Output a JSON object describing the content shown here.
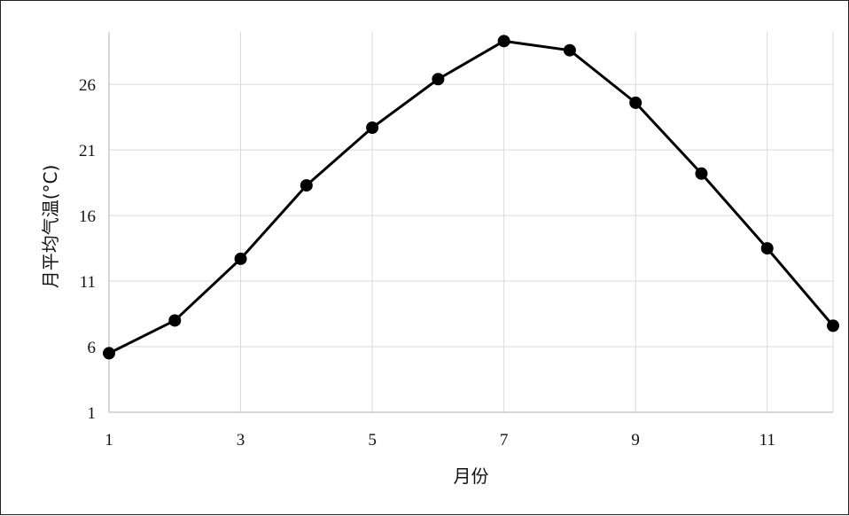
{
  "chart_data": {
    "type": "line",
    "title": "",
    "xlabel": "月份",
    "ylabel": "月平均气温(°C)",
    "x": [
      1,
      2,
      3,
      4,
      5,
      6,
      7,
      8,
      9,
      10,
      11,
      12
    ],
    "series": [
      {
        "values": [
          5.5,
          8.0,
          12.7,
          18.3,
          22.7,
          26.4,
          29.3,
          28.6,
          24.6,
          19.2,
          13.5,
          7.6
        ]
      }
    ],
    "x_ticks": [
      "1",
      "3",
      "5",
      "7",
      "9",
      "11"
    ],
    "y_ticks": [
      "1",
      "6",
      "11",
      "16",
      "21",
      "26"
    ],
    "xlim": [
      1,
      12
    ],
    "ylim": [
      1,
      30
    ],
    "grid": true,
    "legend": "none",
    "colors": {
      "line": "#000000",
      "grid": "#d9d9d9",
      "axis": "#bfbfbf"
    }
  }
}
